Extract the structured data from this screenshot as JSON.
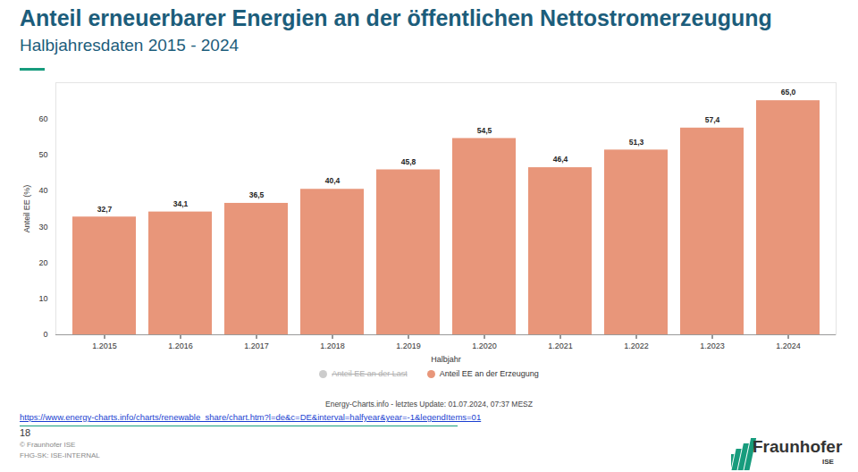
{
  "chart_data": {
    "type": "bar",
    "title": "Anteil erneuerbarer Energien an der öffentlichen Nettostromerzeugung",
    "subtitle": "Halbjahresdaten 2015 - 2024",
    "xlabel": "Halbjahr",
    "ylabel": "Anteil EE (%)",
    "categories": [
      "1.2015",
      "1.2016",
      "1.2017",
      "1.2018",
      "1.2019",
      "1.2020",
      "1.2021",
      "1.2022",
      "1.2023",
      "1.2024"
    ],
    "series": [
      {
        "name": "Anteil EE an der Last",
        "color": "#cccccc",
        "values": [
          null,
          null,
          null,
          null,
          null,
          null,
          null,
          null,
          null,
          null
        ]
      },
      {
        "name": "Anteil EE an der Erzeugung",
        "color": "#e8967a",
        "values": [
          32.7,
          34.1,
          36.5,
          40.4,
          45.8,
          54.5,
          46.4,
          51.3,
          57.4,
          65.0
        ],
        "value_labels": [
          "32,7",
          "34,1",
          "36,5",
          "40,4",
          "45,8",
          "54,5",
          "46,4",
          "51,3",
          "57,4",
          "65,0"
        ]
      }
    ],
    "ylim": [
      0,
      70
    ],
    "yticks": [
      0,
      10,
      20,
      30,
      40,
      50,
      60
    ],
    "grid": false,
    "legend": "bottom",
    "data_labels": true,
    "source": "Energy-Charts.info - letztes Update: 01.07.2024, 07:37 MESZ"
  },
  "footer": {
    "link": "https://www.energy-charts.info/charts/renewable_share/chart.htm?l=de&c=DE&interval=halfyear&year=-1&legendItems=01",
    "page": "18",
    "copyright": "© Fraunhofer ISE",
    "classification": "FHG-SK: ISE-INTERNAL",
    "logo": "Fraunhofer",
    "logo_sub": "ISE"
  }
}
